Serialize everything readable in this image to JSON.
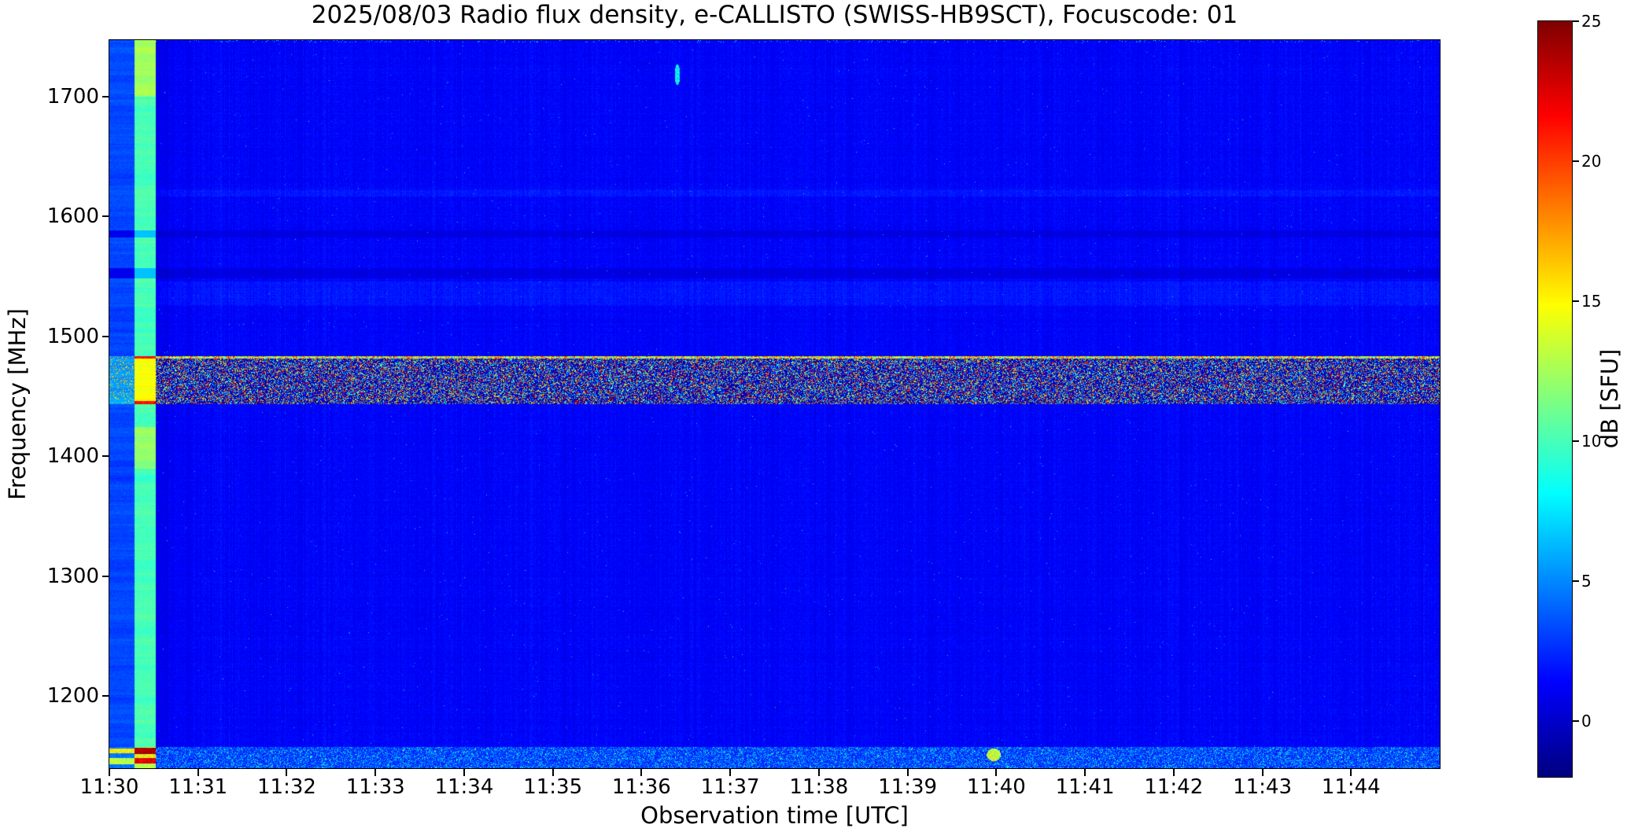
{
  "chart_data": {
    "type": "heatmap",
    "title": "2025/08/03  Radio flux density, e-CALLISTO (SWISS-HB9SCT), Focuscode: 01",
    "xlabel": "Observation time [UTC]",
    "ylabel": "Frequency [MHz]",
    "colorbar_label": "dB [SFU]",
    "colormap": "jet",
    "x_tick_labels": [
      "11:30",
      "11:31",
      "11:32",
      "11:33",
      "11:34",
      "11:35",
      "11:36",
      "11:37",
      "11:38",
      "11:39",
      "11:40",
      "11:41",
      "11:42",
      "11:43",
      "11:44"
    ],
    "x_range": [
      "11:30:00",
      "11:45:00"
    ],
    "x_range_seconds": [
      0,
      900
    ],
    "y_tick_labels": [
      "1700",
      "1600",
      "1500",
      "1400",
      "1300",
      "1200"
    ],
    "y_tick_values": [
      1700,
      1600,
      1500,
      1400,
      1300,
      1200
    ],
    "y_range_mhz": [
      1140,
      1747
    ],
    "colorbar_tick_labels": [
      "25",
      "20",
      "15",
      "10",
      "5",
      "0"
    ],
    "colorbar_tick_values": [
      25,
      20,
      15,
      10,
      5,
      0
    ],
    "colorbar_range": [
      -2,
      25
    ],
    "background_level_db": 1.3,
    "features": {
      "calibration_columns": {
        "description": "two vertical calibration strips at start of recording",
        "t_sec": [
          0,
          16.5,
          31
        ],
        "col1_level_db": 2.8,
        "col2_level_db": 10.0
      },
      "rfi_band": {
        "description": "strong speckled interference band across full duration",
        "freq_mhz": [
          1444,
          1484
        ],
        "level_db_range": [
          -2,
          25
        ]
      },
      "bottom_band": {
        "description": "weak speckled interference band at low frequencies",
        "freq_mhz": [
          1140,
          1158
        ],
        "level_db_range": [
          1,
          11
        ]
      },
      "faint_light_lines_mhz": [
        [
          1617,
          1623
        ],
        [
          1526,
          1546
        ]
      ],
      "faint_dark_lines_mhz": [
        [
          1549,
          1557
        ],
        [
          1583,
          1589
        ]
      ],
      "bright_streak": {
        "t_sec": 384,
        "time": "11:36",
        "freq_mhz": [
          1710,
          1727
        ],
        "level_db": 8
      },
      "bottom_blob": {
        "t_sec": 598,
        "time": "11:40",
        "freq_mhz": [
          1147,
          1156
        ],
        "level_db": 13
      }
    }
  }
}
